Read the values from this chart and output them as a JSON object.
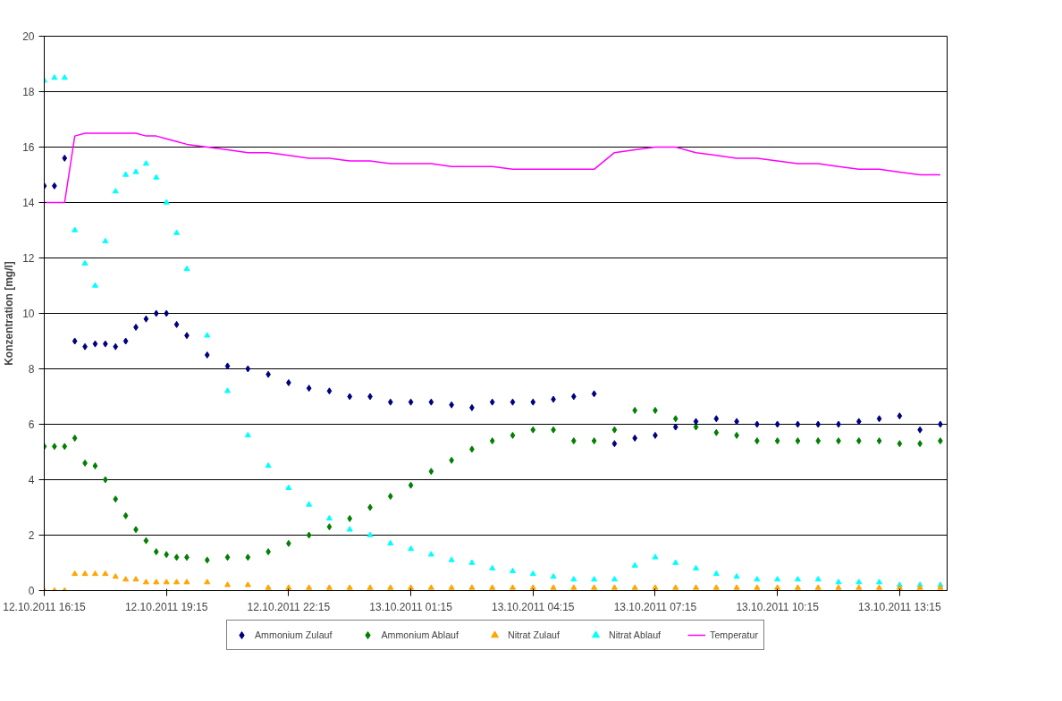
{
  "chart_data": {
    "type": "scatter",
    "ylabel": "Konzentration [mg/l]",
    "x": [
      "2011-10-12T16:15",
      "2011-10-12T16:30",
      "2011-10-12T16:45",
      "2011-10-12T17:00",
      "2011-10-12T17:15",
      "2011-10-12T17:30",
      "2011-10-12T17:45",
      "2011-10-12T18:00",
      "2011-10-12T18:15",
      "2011-10-12T18:30",
      "2011-10-12T18:45",
      "2011-10-12T19:00",
      "2011-10-12T19:15",
      "2011-10-12T19:30",
      "2011-10-12T19:45",
      "2011-10-12T20:15",
      "2011-10-12T20:45",
      "2011-10-12T21:15",
      "2011-10-12T21:45",
      "2011-10-12T22:15",
      "2011-10-12T22:45",
      "2011-10-12T23:15",
      "2011-10-12T23:45",
      "2011-10-13T00:15",
      "2011-10-13T00:45",
      "2011-10-13T01:15",
      "2011-10-13T01:45",
      "2011-10-13T02:15",
      "2011-10-13T02:45",
      "2011-10-13T03:15",
      "2011-10-13T03:45",
      "2011-10-13T04:15",
      "2011-10-13T04:45",
      "2011-10-13T05:15",
      "2011-10-13T05:45",
      "2011-10-13T06:15",
      "2011-10-13T06:45",
      "2011-10-13T07:15",
      "2011-10-13T07:45",
      "2011-10-13T08:15",
      "2011-10-13T08:45",
      "2011-10-13T09:15",
      "2011-10-13T09:45",
      "2011-10-13T10:15",
      "2011-10-13T10:45",
      "2011-10-13T11:15",
      "2011-10-13T11:45",
      "2011-10-13T12:15",
      "2011-10-13T12:45",
      "2011-10-13T13:15",
      "2011-10-13T13:45",
      "2011-10-13T14:15"
    ],
    "series": [
      {
        "name": "Ammonium Zulauf",
        "marker": "diamond",
        "color": "#000080",
        "values": [
          14.6,
          14.6,
          15.6,
          9.0,
          8.8,
          8.9,
          8.9,
          8.8,
          9.0,
          9.5,
          9.8,
          10.0,
          10.0,
          9.6,
          9.2,
          8.5,
          8.1,
          8.0,
          7.8,
          7.5,
          7.3,
          7.2,
          7.0,
          7.0,
          6.8,
          6.8,
          6.8,
          6.7,
          6.6,
          6.8,
          6.8,
          6.8,
          6.9,
          7.0,
          7.1,
          5.3,
          5.5,
          5.6,
          5.9,
          6.1,
          6.2,
          6.1,
          6.0,
          6.0,
          6.0,
          6.0,
          6.0,
          6.1,
          6.2,
          6.3,
          5.8,
          6.0
        ]
      },
      {
        "name": "Ammonium Ablauf",
        "marker": "diamond",
        "color": "#008000",
        "values": [
          5.2,
          5.2,
          5.2,
          5.5,
          4.6,
          4.5,
          4.0,
          3.3,
          2.7,
          2.2,
          1.8,
          1.4,
          1.3,
          1.2,
          1.2,
          1.1,
          1.2,
          1.2,
          1.4,
          1.7,
          2.0,
          2.3,
          2.6,
          3.0,
          3.4,
          3.8,
          4.3,
          4.7,
          5.1,
          5.4,
          5.6,
          5.8,
          5.8,
          5.4,
          5.4,
          5.8,
          6.5,
          6.5,
          6.2,
          5.9,
          5.7,
          5.6,
          5.4,
          5.4,
          5.4,
          5.4,
          5.4,
          5.4,
          5.4,
          5.3,
          5.3,
          5.4
        ]
      },
      {
        "name": "Nitrat Zulauf",
        "marker": "triangle",
        "color": "#ffa500",
        "values": [
          0.0,
          0.0,
          0.0,
          0.6,
          0.6,
          0.6,
          0.6,
          0.5,
          0.4,
          0.4,
          0.3,
          0.3,
          0.3,
          0.3,
          0.3,
          0.3,
          0.2,
          0.2,
          0.1,
          0.1,
          0.1,
          0.1,
          0.1,
          0.1,
          0.1,
          0.1,
          0.1,
          0.1,
          0.1,
          0.1,
          0.1,
          0.1,
          0.1,
          0.1,
          0.1,
          0.1,
          0.1,
          0.1,
          0.1,
          0.1,
          0.1,
          0.1,
          0.1,
          0.1,
          0.1,
          0.1,
          0.1,
          0.1,
          0.1,
          0.1,
          0.1,
          0.1
        ]
      },
      {
        "name": "Nitrat Ablauf",
        "marker": "triangle",
        "color": "#00ffff",
        "values": [
          18.4,
          18.5,
          18.5,
          13.0,
          11.8,
          11.0,
          12.6,
          14.4,
          15.0,
          15.1,
          15.4,
          14.9,
          14.0,
          12.9,
          11.6,
          9.2,
          7.2,
          5.6,
          4.5,
          3.7,
          3.1,
          2.6,
          2.2,
          2.0,
          1.7,
          1.5,
          1.3,
          1.1,
          1.0,
          0.8,
          0.7,
          0.6,
          0.5,
          0.4,
          0.4,
          0.4,
          0.9,
          1.2,
          1.0,
          0.8,
          0.6,
          0.5,
          0.4,
          0.4,
          0.4,
          0.4,
          0.3,
          0.3,
          0.3,
          0.2,
          0.2,
          0.2
        ]
      },
      {
        "name": "Temperatur",
        "type": "line",
        "marker": "none",
        "color": "#ff00ff",
        "values": [
          14.0,
          14.0,
          14.0,
          16.4,
          16.5,
          16.5,
          16.5,
          16.5,
          16.5,
          16.5,
          16.4,
          16.4,
          16.3,
          16.2,
          16.1,
          16.0,
          15.9,
          15.8,
          15.8,
          15.7,
          15.6,
          15.6,
          15.5,
          15.5,
          15.4,
          15.4,
          15.4,
          15.3,
          15.3,
          15.3,
          15.2,
          15.2,
          15.2,
          15.2,
          15.2,
          15.8,
          15.9,
          16.0,
          16.0,
          15.8,
          15.7,
          15.6,
          15.6,
          15.5,
          15.4,
          15.4,
          15.3,
          15.2,
          15.2,
          15.1,
          15.0,
          15.0
        ]
      }
    ],
    "xlim": [
      "2011-10-12T16:15",
      "2011-10-13T14:25"
    ],
    "xticks": [
      {
        "value": "2011-10-12T16:15",
        "label": "12.10.2011 16:15"
      },
      {
        "value": "2011-10-12T19:15",
        "label": "12.10.2011 19:15"
      },
      {
        "value": "2011-10-12T22:15",
        "label": "12.10.2011 22:15"
      },
      {
        "value": "2011-10-13T01:15",
        "label": "13.10.2011 01:15"
      },
      {
        "value": "2011-10-13T04:15",
        "label": "13.10.2011 04:15"
      },
      {
        "value": "2011-10-13T07:15",
        "label": "13.10.2011 07:15"
      },
      {
        "value": "2011-10-13T10:15",
        "label": "13.10.2011 10:15"
      },
      {
        "value": "2011-10-13T13:15",
        "label": "13.10.2011 13:15"
      }
    ],
    "ylim": [
      0,
      20
    ],
    "yticks": [
      0,
      2,
      4,
      6,
      8,
      10,
      12,
      14,
      16,
      18,
      20
    ],
    "grid": "y",
    "legend": "bottom"
  }
}
